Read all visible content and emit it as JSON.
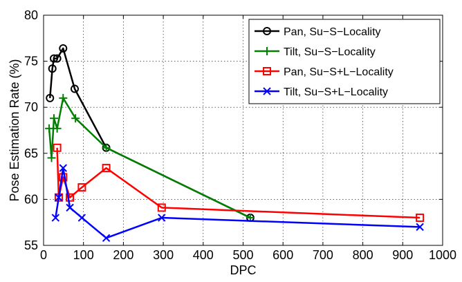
{
  "chart_data": {
    "type": "line",
    "xlabel": "DPC",
    "ylabel": "Pose Estimation Rate (%)",
    "xlim": [
      0,
      1000
    ],
    "ylim": [
      55,
      80
    ],
    "x_ticks": [
      0,
      100,
      200,
      300,
      400,
      500,
      600,
      700,
      800,
      900,
      1000
    ],
    "y_ticks": [
      55,
      60,
      65,
      70,
      75,
      80
    ],
    "grid": true,
    "legend_position": "top-right",
    "series": [
      {
        "name": "Pan, Su−S−Locality",
        "color": "#000000",
        "marker": "circle",
        "x": [
          16,
          22,
          26,
          34,
          49,
          78,
          157,
          518
        ],
        "y": [
          71.0,
          74.2,
          75.3,
          75.3,
          76.4,
          72.0,
          65.6,
          58.0
        ]
      },
      {
        "name": "Tilt, Su−S−Locality",
        "color": "#008000",
        "marker": "plus",
        "x": [
          14,
          20,
          26,
          34,
          49,
          80,
          157,
          518
        ],
        "y": [
          67.7,
          64.5,
          68.8,
          67.7,
          71.0,
          68.8,
          65.6,
          58.0
        ]
      },
      {
        "name": "Pan, Su−S+L−Locality",
        "color": "#ff0000",
        "marker": "square",
        "x": [
          34,
          38,
          49,
          66,
          96,
          157,
          296,
          943
        ],
        "y": [
          65.6,
          60.2,
          62.4,
          60.2,
          61.3,
          63.4,
          59.1,
          58.0
        ]
      },
      {
        "name": "Tilt, Su−S+L−Locality",
        "color": "#0000ff",
        "marker": "x",
        "x": [
          30,
          38,
          49,
          66,
          96,
          157,
          296,
          943
        ],
        "y": [
          58.0,
          60.2,
          63.4,
          59.1,
          58.0,
          55.8,
          58.0,
          57.0
        ]
      }
    ]
  }
}
